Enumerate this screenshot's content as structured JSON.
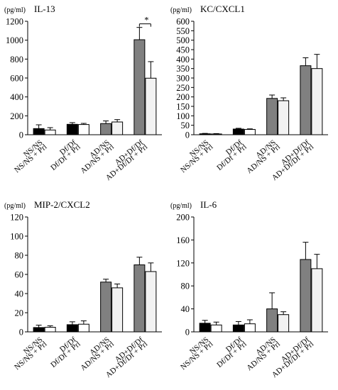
{
  "chart_data": [
    {
      "type": "bar",
      "unit": "(pg/ml)",
      "title": "IL-13",
      "ylim": [
        0,
        1200
      ],
      "yticks": [
        0,
        200,
        400,
        600,
        800,
        1000,
        1200
      ],
      "groups": [
        {
          "labels": [
            "NS/NS",
            "NS/NS + Prl"
          ],
          "values": [
            65,
            50
          ],
          "errors": [
            40,
            25
          ]
        },
        {
          "labels": [
            "Df/Df",
            "Df/Df + Prl"
          ],
          "values": [
            110,
            108
          ],
          "errors": [
            18,
            12
          ]
        },
        {
          "labels": [
            "AD/NS",
            "AD/NS + Prl"
          ],
          "values": [
            118,
            135
          ],
          "errors": [
            28,
            25
          ]
        },
        {
          "labels": [
            "AD+Df/Df",
            "AD+Df/Df + Prl"
          ],
          "values": [
            1005,
            598
          ],
          "errors": [
            130,
            175
          ]
        }
      ],
      "significance": "*"
    },
    {
      "type": "bar",
      "unit": "(pg/ml)",
      "title": "KC/CXCL1",
      "ylim": [
        0,
        600
      ],
      "yticks": [
        0,
        50,
        100,
        150,
        200,
        250,
        300,
        350,
        400,
        450,
        500,
        550,
        600
      ],
      "groups": [
        {
          "labels": [
            "NS/NS",
            "NS/NS + Prl"
          ],
          "values": [
            5,
            4
          ],
          "errors": [
            2,
            2
          ]
        },
        {
          "labels": [
            "Df/Df",
            "Df/Df + Prl"
          ],
          "values": [
            30,
            28
          ],
          "errors": [
            4,
            3
          ]
        },
        {
          "labels": [
            "AD/NS",
            "AD/NS + Prl"
          ],
          "values": [
            192,
            180
          ],
          "errors": [
            18,
            15
          ]
        },
        {
          "labels": [
            "AD+Df/Df",
            "AD+Df/Df + Prl"
          ],
          "values": [
            365,
            350
          ],
          "errors": [
            42,
            75
          ]
        }
      ]
    },
    {
      "type": "bar",
      "unit": "(pg/ml)",
      "title": "MIP-2/CXCL2",
      "ylim": [
        0,
        120
      ],
      "yticks": [
        0,
        20,
        40,
        60,
        80,
        100,
        120
      ],
      "groups": [
        {
          "labels": [
            "NS/NS",
            "NS/NS + Prl"
          ],
          "values": [
            4.5,
            4.8
          ],
          "errors": [
            2.5,
            1.5
          ]
        },
        {
          "labels": [
            "Df/Df",
            "Df/Df + Prl"
          ],
          "values": [
            7.5,
            8
          ],
          "errors": [
            3,
            3.5
          ]
        },
        {
          "labels": [
            "AD/NS",
            "AD/NS + Prl"
          ],
          "values": [
            52,
            46
          ],
          "errors": [
            3,
            4
          ]
        },
        {
          "labels": [
            "AD+Df/Df",
            "AD+Df/Df + Prl"
          ],
          "values": [
            70,
            63
          ],
          "errors": [
            8,
            9
          ]
        }
      ]
    },
    {
      "type": "bar",
      "unit": "(pg/ml)",
      "title": "IL-6",
      "ylim": [
        0,
        200
      ],
      "yticks": [
        0,
        40,
        80,
        120,
        160,
        200
      ],
      "groups": [
        {
          "labels": [
            "NS/NS",
            "NS/NS + Prl"
          ],
          "values": [
            15,
            12
          ],
          "errors": [
            5,
            5
          ]
        },
        {
          "labels": [
            "Df/Df",
            "Df/Df + Prl"
          ],
          "values": [
            12,
            14
          ],
          "errors": [
            6,
            7
          ]
        },
        {
          "labels": [
            "AD/NS",
            "AD/NS + Prl"
          ],
          "values": [
            40,
            30
          ],
          "errors": [
            28,
            5
          ]
        },
        {
          "labels": [
            "AD+Df/Df",
            "AD+Df/Df + Prl"
          ],
          "values": [
            126,
            110
          ],
          "errors": [
            30,
            25
          ]
        }
      ]
    }
  ],
  "bar_colors": [
    "#000000",
    "#ffffff",
    "#808080",
    "#f2f2f2"
  ]
}
